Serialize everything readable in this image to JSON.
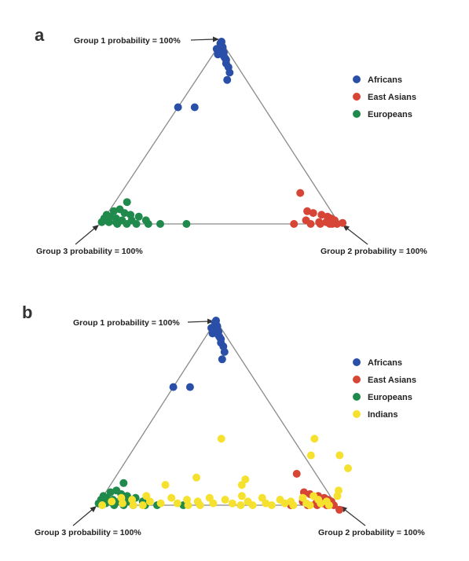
{
  "chart_data": [
    {
      "type": "scatter",
      "subtype": "ternary",
      "panel": "a",
      "vertex_labels": {
        "top": "Group 1 probability = 100%",
        "right": "Group 2 probability = 100%",
        "left": "Group 3 probability = 100%"
      },
      "legend": {
        "position": "right",
        "entries": [
          "Africans",
          "East Asians",
          "Europeans"
        ]
      },
      "point_encoding": "[p1, p2, p3] membership probabilities (Group 1, Group 2, Group 3)",
      "series": [
        {
          "name": "Africans",
          "color": "#2a4fa8",
          "points": [
            [
              1.0,
              0.0,
              0.0
            ],
            [
              0.98,
              0.01,
              0.01
            ],
            [
              0.97,
              0.02,
              0.01
            ],
            [
              0.96,
              0.0,
              0.04
            ],
            [
              0.95,
              0.03,
              0.02
            ],
            [
              0.94,
              0.04,
              0.02
            ],
            [
              0.93,
              0.02,
              0.05
            ],
            [
              0.92,
              0.05,
              0.03
            ],
            [
              0.91,
              0.06,
              0.03
            ],
            [
              0.9,
              0.07,
              0.03
            ],
            [
              0.88,
              0.08,
              0.04
            ],
            [
              0.86,
              0.1,
              0.04
            ],
            [
              0.83,
              0.12,
              0.05
            ],
            [
              0.79,
              0.13,
              0.08
            ],
            [
              0.64,
              0.0,
              0.36
            ],
            [
              0.64,
              0.07,
              0.29
            ],
            [
              0.99,
              0.0,
              0.01
            ],
            [
              0.95,
              0.01,
              0.04
            ]
          ]
        },
        {
          "name": "East Asians",
          "color": "#d64535",
          "points": [
            [
              0.17,
              0.75,
              0.08
            ],
            [
              0.07,
              0.83,
              0.1
            ],
            [
              0.06,
              0.86,
              0.08
            ],
            [
              0.05,
              0.9,
              0.05
            ],
            [
              0.04,
              0.93,
              0.03
            ],
            [
              0.03,
              0.95,
              0.02
            ],
            [
              0.02,
              0.97,
              0.01
            ],
            [
              0.02,
              0.85,
              0.13
            ],
            [
              0.01,
              0.91,
              0.08
            ],
            [
              0.01,
              0.94,
              0.05
            ],
            [
              0.0,
              0.96,
              0.04
            ],
            [
              0.0,
              0.99,
              0.01
            ],
            [
              0.0,
              0.81,
              0.19
            ],
            [
              0.0,
              0.88,
              0.12
            ],
            [
              0.0,
              0.92,
              0.08
            ],
            [
              0.03,
              0.99,
              0.0
            ],
            [
              0.0,
              0.97,
              0.03
            ]
          ]
        },
        {
          "name": "Europeans",
          "color": "#1f8a4c",
          "points": [
            [
              0.12,
              0.05,
              0.83
            ],
            [
              0.08,
              0.04,
              0.88
            ],
            [
              0.07,
              0.02,
              0.91
            ],
            [
              0.06,
              0.07,
              0.87
            ],
            [
              0.05,
              0.0,
              0.95
            ],
            [
              0.05,
              0.1,
              0.85
            ],
            [
              0.04,
              0.14,
              0.82
            ],
            [
              0.04,
              0.02,
              0.94
            ],
            [
              0.03,
              0.05,
              0.92
            ],
            [
              0.03,
              0.0,
              0.97
            ],
            [
              0.02,
              0.08,
              0.9
            ],
            [
              0.02,
              0.12,
              0.86
            ],
            [
              0.02,
              0.18,
              0.8
            ],
            [
              0.01,
              0.0,
              0.99
            ],
            [
              0.01,
              0.03,
              0.96
            ],
            [
              0.01,
              0.06,
              0.93
            ],
            [
              0.0,
              0.11,
              0.89
            ],
            [
              0.0,
              0.15,
              0.85
            ],
            [
              0.0,
              0.25,
              0.75
            ],
            [
              0.0,
              0.36,
              0.64
            ],
            [
              0.0,
              0.07,
              0.93
            ],
            [
              0.0,
              0.2,
              0.8
            ]
          ]
        }
      ]
    },
    {
      "type": "scatter",
      "subtype": "ternary",
      "panel": "b",
      "vertex_labels": {
        "top": "Group 1 probability = 100%",
        "right": "Group 2 probability = 100%",
        "left": "Group 3 probability = 100%"
      },
      "legend": {
        "position": "right",
        "entries": [
          "Africans",
          "East Asians",
          "Europeans",
          "Indians"
        ]
      },
      "point_encoding": "[p1, p2, p3] membership probabilities (Group 1, Group 2, Group 3)",
      "series": [
        {
          "name": "Africans",
          "color": "#2a4fa8",
          "points": [
            [
              1.0,
              0.0,
              0.0
            ],
            [
              0.98,
              0.01,
              0.01
            ],
            [
              0.97,
              0.02,
              0.01
            ],
            [
              0.96,
              0.0,
              0.04
            ],
            [
              0.95,
              0.03,
              0.02
            ],
            [
              0.94,
              0.04,
              0.02
            ],
            [
              0.93,
              0.02,
              0.05
            ],
            [
              0.92,
              0.05,
              0.03
            ],
            [
              0.91,
              0.06,
              0.03
            ],
            [
              0.9,
              0.07,
              0.03
            ],
            [
              0.88,
              0.08,
              0.04
            ],
            [
              0.86,
              0.1,
              0.04
            ],
            [
              0.83,
              0.12,
              0.05
            ],
            [
              0.79,
              0.13,
              0.08
            ],
            [
              0.64,
              0.0,
              0.36
            ],
            [
              0.64,
              0.07,
              0.29
            ],
            [
              0.99,
              0.0,
              0.01
            ],
            [
              0.95,
              0.01,
              0.04
            ]
          ]
        },
        {
          "name": "East Asians",
          "color": "#d64535",
          "points": [
            [
              0.17,
              0.75,
              0.08
            ],
            [
              0.07,
              0.83,
              0.1
            ],
            [
              0.06,
              0.86,
              0.08
            ],
            [
              0.05,
              0.9,
              0.05
            ],
            [
              0.04,
              0.93,
              0.03
            ],
            [
              0.03,
              0.95,
              0.02
            ],
            [
              0.02,
              0.97,
              0.01
            ],
            [
              0.02,
              0.85,
              0.13
            ],
            [
              0.01,
              0.91,
              0.08
            ],
            [
              0.01,
              0.94,
              0.05
            ],
            [
              0.0,
              0.96,
              0.04
            ],
            [
              0.0,
              0.99,
              0.01
            ],
            [
              0.0,
              0.81,
              0.19
            ],
            [
              0.0,
              0.88,
              0.12
            ],
            [
              0.0,
              0.92,
              0.08
            ],
            [
              0.03,
              0.99,
              0.0
            ],
            [
              0.0,
              0.97,
              0.03
            ]
          ]
        },
        {
          "name": "Europeans",
          "color": "#1f8a4c",
          "points": [
            [
              0.12,
              0.05,
              0.83
            ],
            [
              0.08,
              0.04,
              0.88
            ],
            [
              0.07,
              0.02,
              0.91
            ],
            [
              0.06,
              0.07,
              0.87
            ],
            [
              0.05,
              0.0,
              0.95
            ],
            [
              0.05,
              0.1,
              0.85
            ],
            [
              0.04,
              0.14,
              0.82
            ],
            [
              0.04,
              0.02,
              0.94
            ],
            [
              0.03,
              0.05,
              0.92
            ],
            [
              0.03,
              0.0,
              0.97
            ],
            [
              0.02,
              0.08,
              0.9
            ],
            [
              0.02,
              0.12,
              0.86
            ],
            [
              0.02,
              0.18,
              0.8
            ],
            [
              0.01,
              0.0,
              0.99
            ],
            [
              0.01,
              0.03,
              0.96
            ],
            [
              0.01,
              0.06,
              0.93
            ],
            [
              0.0,
              0.11,
              0.89
            ],
            [
              0.0,
              0.15,
              0.85
            ],
            [
              0.0,
              0.25,
              0.75
            ],
            [
              0.0,
              0.36,
              0.64
            ],
            [
              0.0,
              0.07,
              0.93
            ],
            [
              0.0,
              0.2,
              0.8
            ]
          ]
        },
        {
          "name": "Indians",
          "color": "#f5e12e",
          "points": [
            [
              0.36,
              0.34,
              0.3
            ],
            [
              0.36,
              0.73,
              -0.09
            ],
            [
              0.27,
              0.76,
              -0.03
            ],
            [
              0.27,
              0.88,
              -0.15
            ],
            [
              0.2,
              0.95,
              -0.15
            ],
            [
              0.15,
              0.34,
              0.51
            ],
            [
              0.14,
              0.55,
              0.31
            ],
            [
              0.11,
              0.55,
              0.34
            ],
            [
              0.11,
              0.23,
              0.66
            ],
            [
              0.08,
              0.97,
              -0.05
            ],
            [
              0.05,
              0.18,
              0.77
            ],
            [
              0.05,
              0.58,
              0.37
            ],
            [
              0.05,
              0.88,
              0.07
            ],
            [
              0.05,
              0.98,
              -0.03
            ],
            [
              0.04,
              0.08,
              0.88
            ],
            [
              0.04,
              0.29,
              0.67
            ],
            [
              0.04,
              0.45,
              0.51
            ],
            [
              0.04,
              0.67,
              0.29
            ],
            [
              0.04,
              0.84,
              0.12
            ],
            [
              0.03,
              0.13,
              0.84
            ],
            [
              0.03,
              0.36,
              0.61
            ],
            [
              0.03,
              0.52,
              0.45
            ],
            [
              0.03,
              0.75,
              0.22
            ],
            [
              0.03,
              0.91,
              0.06
            ],
            [
              0.02,
              0.05,
              0.93
            ],
            [
              0.02,
              0.21,
              0.77
            ],
            [
              0.02,
              0.41,
              0.57
            ],
            [
              0.02,
              0.62,
              0.36
            ],
            [
              0.02,
              0.8,
              0.18
            ],
            [
              0.02,
              0.95,
              0.03
            ],
            [
              0.01,
              0.1,
              0.89
            ],
            [
              0.01,
              0.26,
              0.73
            ],
            [
              0.01,
              0.33,
              0.66
            ],
            [
              0.01,
              0.48,
              0.51
            ],
            [
              0.01,
              0.56,
              0.43
            ],
            [
              0.01,
              0.7,
              0.29
            ],
            [
              0.01,
              0.78,
              0.21
            ],
            [
              0.01,
              0.87,
              0.12
            ],
            [
              0.01,
              0.93,
              0.06
            ],
            [
              0.0,
              0.15,
              0.85
            ],
            [
              0.0,
              0.19,
              0.81
            ],
            [
              0.0,
              0.38,
              0.62
            ],
            [
              0.0,
              0.43,
              0.57
            ],
            [
              0.0,
              0.6,
              0.4
            ],
            [
              0.0,
              0.65,
              0.35
            ],
            [
              0.0,
              0.73,
              0.27
            ],
            [
              0.0,
              0.82,
              0.18
            ],
            [
              0.0,
              0.89,
              0.11
            ],
            [
              0.0,
              0.97,
              0.03
            ],
            [
              0.0,
              0.02,
              0.98
            ]
          ]
        }
      ]
    }
  ]
}
